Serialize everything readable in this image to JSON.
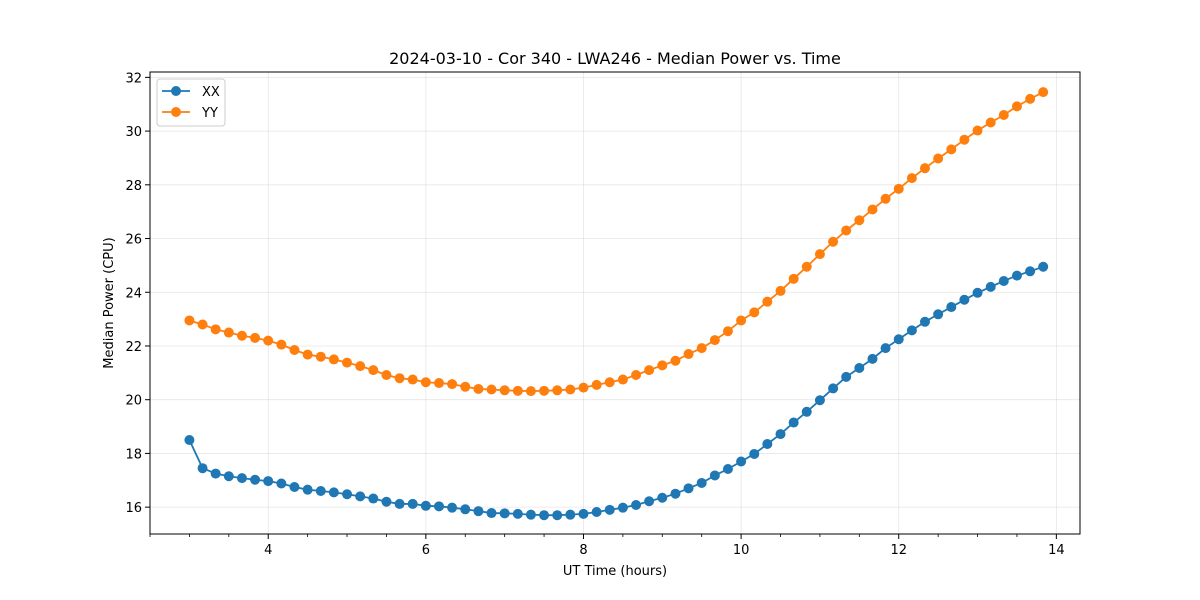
{
  "chart_data": {
    "type": "line",
    "title": "2024-03-10 - Cor 340 - LWA246 - Median Power vs. Time",
    "xlabel": "UT Time (hours)",
    "ylabel": "Median Power (CPU)",
    "xlim": [
      2.5,
      14.3
    ],
    "ylim": [
      15.0,
      32.2
    ],
    "xticks": [
      4,
      6,
      8,
      10,
      12,
      14
    ],
    "xtick_labels": [
      "4",
      "6",
      "8",
      "10",
      "12",
      "14"
    ],
    "xminor_step": 0.5,
    "yticks": [
      16,
      18,
      20,
      22,
      24,
      26,
      28,
      30,
      32
    ],
    "ytick_labels": [
      "16",
      "18",
      "20",
      "22",
      "24",
      "26",
      "28",
      "30",
      "32"
    ],
    "grid": true,
    "legend_position": "top-left",
    "x": [
      3.0,
      3.167,
      3.333,
      3.5,
      3.667,
      3.833,
      4.0,
      4.167,
      4.333,
      4.5,
      4.667,
      4.833,
      5.0,
      5.167,
      5.333,
      5.5,
      5.667,
      5.833,
      6.0,
      6.167,
      6.333,
      6.5,
      6.667,
      6.833,
      7.0,
      7.167,
      7.333,
      7.5,
      7.667,
      7.833,
      8.0,
      8.167,
      8.333,
      8.5,
      8.667,
      8.833,
      9.0,
      9.167,
      9.333,
      9.5,
      9.667,
      9.833,
      10.0,
      10.167,
      10.333,
      10.5,
      10.667,
      10.833,
      11.0,
      11.167,
      11.333,
      11.5,
      11.667,
      11.833,
      12.0,
      12.167,
      12.333,
      12.5,
      12.667,
      12.833,
      13.0,
      13.167,
      13.333,
      13.5,
      13.667,
      13.833
    ],
    "series": [
      {
        "name": "XX",
        "color": "#1f77b4",
        "values": [
          18.5,
          17.45,
          17.25,
          17.15,
          17.08,
          17.02,
          16.97,
          16.88,
          16.75,
          16.65,
          16.6,
          16.55,
          16.48,
          16.4,
          16.32,
          16.2,
          16.12,
          16.12,
          16.05,
          16.03,
          15.98,
          15.92,
          15.85,
          15.78,
          15.77,
          15.75,
          15.72,
          15.7,
          15.7,
          15.72,
          15.75,
          15.82,
          15.9,
          15.98,
          16.08,
          16.22,
          16.35,
          16.5,
          16.7,
          16.9,
          17.18,
          17.42,
          17.7,
          17.98,
          18.35,
          18.72,
          19.15,
          19.55,
          19.98,
          20.42,
          20.85,
          21.18,
          21.52,
          21.92,
          22.25,
          22.58,
          22.9,
          23.18,
          23.45,
          23.72,
          23.98,
          24.2,
          24.42,
          24.62,
          24.78,
          24.95
        ]
      },
      {
        "name": "YY",
        "color": "#ff7f0e",
        "values": [
          22.95,
          22.8,
          22.62,
          22.5,
          22.38,
          22.3,
          22.2,
          22.05,
          21.85,
          21.68,
          21.6,
          21.5,
          21.38,
          21.25,
          21.1,
          20.92,
          20.8,
          20.75,
          20.65,
          20.62,
          20.58,
          20.48,
          20.4,
          20.38,
          20.35,
          20.33,
          20.32,
          20.33,
          20.35,
          20.38,
          20.45,
          20.55,
          20.65,
          20.75,
          20.92,
          21.1,
          21.28,
          21.45,
          21.7,
          21.92,
          22.22,
          22.55,
          22.95,
          23.25,
          23.65,
          24.05,
          24.5,
          24.95,
          25.42,
          25.88,
          26.3,
          26.68,
          27.08,
          27.48,
          27.85,
          28.25,
          28.62,
          28.98,
          29.32,
          29.68,
          30.02,
          30.32,
          30.6,
          30.92,
          31.2,
          31.45
        ]
      }
    ]
  }
}
